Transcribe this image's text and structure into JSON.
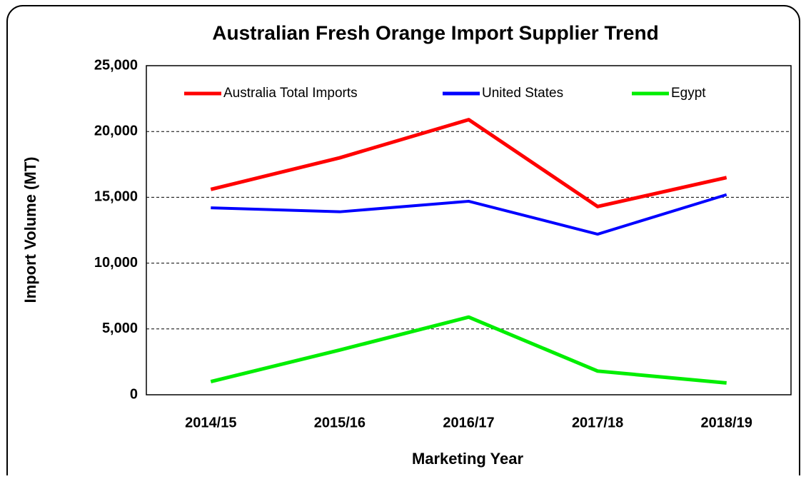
{
  "chart_data": {
    "type": "line",
    "title": "Australian Fresh Orange Import Supplier Trend",
    "x_label": "Marketing Year",
    "y_label": "Import Volume (MT)",
    "categories": [
      "2014/15",
      "2015/16",
      "2016/17",
      "2017/18",
      "2018/19"
    ],
    "series": [
      {
        "name": "Australia Total Imports",
        "color": "#ff0000",
        "values": [
          15600,
          18000,
          20900,
          14300,
          16500
        ]
      },
      {
        "name": "United States",
        "color": "#0000ff",
        "values": [
          14200,
          13900,
          14700,
          12200,
          15200
        ]
      },
      {
        "name": "Egypt",
        "color": "#00ee00",
        "values": [
          1000,
          3400,
          5900,
          1800,
          900
        ]
      }
    ],
    "ylim": [
      0,
      25000
    ],
    "yticks": [
      0,
      {
        "value": 5000,
        "label": "5,000"
      },
      {
        "value": 10000,
        "label": "10,000"
      },
      {
        "value": 15000,
        "label": "15,000"
      },
      {
        "value": 20000,
        "label": "20,000"
      },
      {
        "value": 25000,
        "label": "25,000"
      }
    ],
    "grid": true,
    "legend": "top"
  }
}
